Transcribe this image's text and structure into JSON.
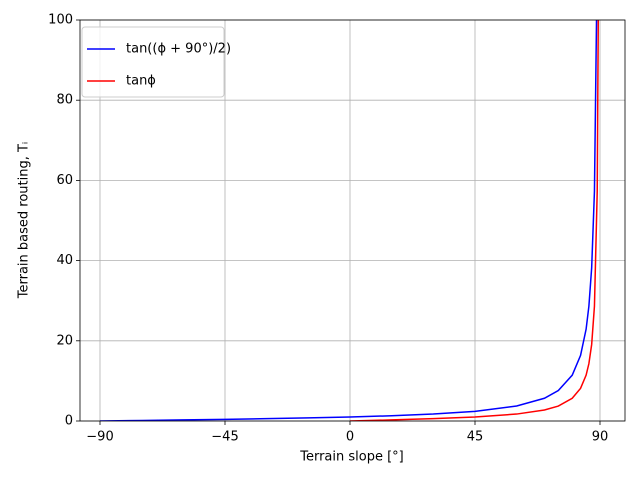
{
  "chart_data": {
    "type": "line",
    "xlabel": "Terrain slope [°]",
    "ylabel": "Terrain based routing, Tᵢ",
    "xlim": [
      -97.2,
      99
    ],
    "ylim": [
      0,
      100
    ],
    "xticks": [
      {
        "value": -90,
        "label": "−90"
      },
      {
        "value": -45,
        "label": "−45"
      },
      0,
      45,
      90
    ],
    "yticks": [
      0,
      20,
      40,
      60,
      80,
      100
    ],
    "grid": true,
    "legend": "upper left",
    "series": [
      {
        "name": "tan((ϕ + 90°)/2)",
        "color": "#0000ff",
        "x": [
          -90,
          -75,
          -60,
          -45,
          -30,
          -15,
          0,
          15,
          30,
          45,
          60,
          70,
          75,
          80,
          83,
          85,
          86,
          87,
          88,
          89
        ],
        "values": [
          0,
          0.132,
          0.268,
          0.414,
          0.577,
          0.767,
          1,
          1.303,
          1.732,
          2.414,
          3.732,
          5.671,
          7.596,
          11.43,
          16.35,
          22.9,
          28.64,
          38.19,
          57.29,
          114.59
        ]
      },
      {
        "name": "tanϕ",
        "color": "#ff0000",
        "x": [
          0,
          15,
          30,
          45,
          60,
          70,
          75,
          80,
          83,
          85,
          86,
          87,
          88,
          89,
          89.5
        ],
        "values": [
          0,
          0.268,
          0.577,
          1,
          1.732,
          2.747,
          3.732,
          5.671,
          8.144,
          11.43,
          14.3,
          19.08,
          28.64,
          57.29,
          114.59
        ]
      }
    ]
  }
}
